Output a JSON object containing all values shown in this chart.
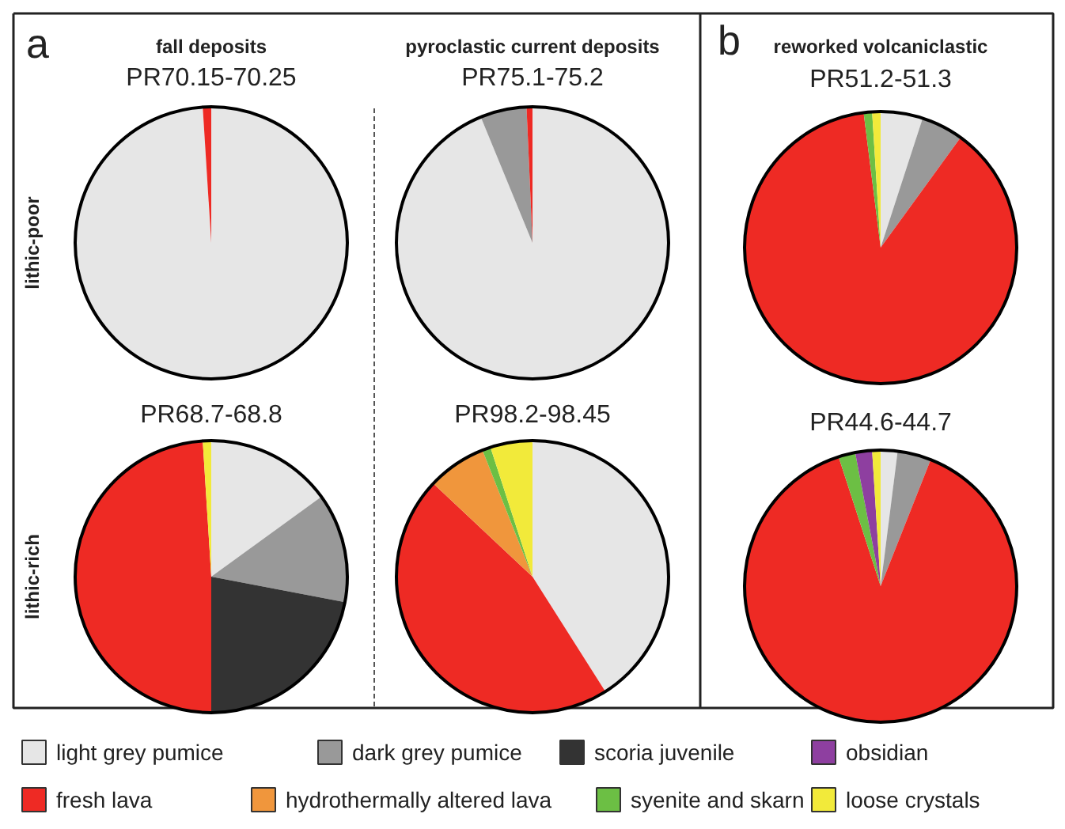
{
  "chart_data": [
    {
      "type": "pie",
      "title": "PR70.15-70.25",
      "legend": "bottom",
      "categories": [
        "light grey pumice",
        "dark grey pumice",
        "scoria juvenile",
        "fresh lava",
        "hydrothermally altered lava",
        "syenite and skarn",
        "obsidian",
        "loose crystals"
      ],
      "values": [
        99,
        0,
        0,
        1,
        0,
        0,
        0,
        0
      ],
      "colors": [
        "#e6e6e6",
        "#999999",
        "#333333",
        "#ee2a24",
        "#f0963c",
        "#6cbf44",
        "#8e3fa0",
        "#f2ea3a"
      ]
    },
    {
      "type": "pie",
      "title": "PR75.1-75.2",
      "values": [
        93.8,
        5.5,
        0,
        0.7,
        0,
        0,
        0,
        0
      ],
      "colors": [
        "#e6e6e6",
        "#999999",
        "#333333",
        "#ee2a24",
        "#f0963c",
        "#6cbf44",
        "#8e3fa0",
        "#f2ea3a"
      ]
    },
    {
      "type": "pie",
      "title": "PR51.2-51.3",
      "values": [
        5,
        5,
        0,
        88,
        0,
        1,
        0,
        1
      ],
      "colors": [
        "#e6e6e6",
        "#999999",
        "#333333",
        "#ee2a24",
        "#f0963c",
        "#6cbf44",
        "#8e3fa0",
        "#f2ea3a"
      ]
    },
    {
      "type": "pie",
      "title": "PR68.7-68.8",
      "values": [
        15,
        13,
        22,
        49,
        0,
        0,
        0,
        1
      ],
      "colors": [
        "#e6e6e6",
        "#999999",
        "#333333",
        "#ee2a24",
        "#f0963c",
        "#6cbf44",
        "#8e3fa0",
        "#f2ea3a"
      ]
    },
    {
      "type": "pie",
      "title": "PR98.2-98.45",
      "values": [
        41,
        0,
        0,
        46,
        7,
        1,
        0,
        5
      ],
      "colors": [
        "#e6e6e6",
        "#999999",
        "#333333",
        "#ee2a24",
        "#f0963c",
        "#6cbf44",
        "#8e3fa0",
        "#f2ea3a"
      ]
    },
    {
      "type": "pie",
      "title": "PR44.6-44.7",
      "values": [
        2,
        4,
        0,
        89,
        0,
        2,
        2,
        1
      ],
      "colors": [
        "#e6e6e6",
        "#999999",
        "#333333",
        "#ee2a24",
        "#f0963c",
        "#6cbf44",
        "#8e3fa0",
        "#f2ea3a"
      ]
    },
    {
      "type": "other",
      "annotations": [
        "a",
        "b",
        "fall deposits",
        "pyroclastic current deposits",
        "reworked volcaniclastic",
        "lithic-poor",
        "lithic-rich"
      ]
    }
  ]
}
